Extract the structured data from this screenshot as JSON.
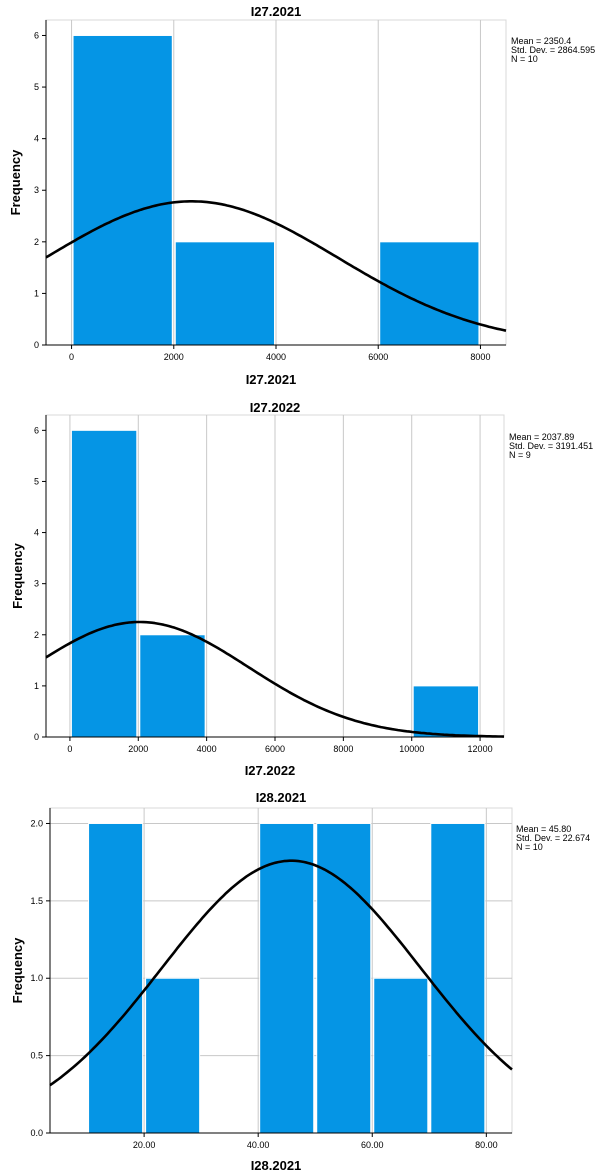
{
  "chart_data": [
    {
      "type": "bar",
      "title": "I27.2021",
      "xlabel": "I27.2021",
      "ylabel": "Frequency",
      "bins": [
        {
          "x0": 0,
          "x1": 2000,
          "count": 6
        },
        {
          "x0": 2000,
          "x1": 4000,
          "count": 2
        },
        {
          "x0": 4000,
          "x1": 6000,
          "count": 0
        },
        {
          "x0": 6000,
          "x1": 8000,
          "count": 2
        }
      ],
      "xlim": [
        -500,
        8500
      ],
      "ylim": [
        0,
        6.3
      ],
      "xticks": [
        0,
        2000,
        4000,
        6000,
        8000
      ],
      "xtick_labels": [
        "0",
        "2000",
        "4000",
        "6000",
        "8000"
      ],
      "yticks": [
        0,
        1,
        2,
        3,
        4,
        5,
        6
      ],
      "ytick_labels": [
        "0",
        "1",
        "2",
        "3",
        "4",
        "5",
        "6"
      ],
      "normal_curve": {
        "mean": 2350.4,
        "sd": 2864.595,
        "n": 10,
        "bin_width": 2000
      },
      "stats": [
        "Mean = 2350.4",
        "Std. Dev. = 2864.595",
        "N = 10"
      ],
      "grid": "vertical"
    },
    {
      "type": "bar",
      "title": "I27.2022",
      "xlabel": "I27.2022",
      "ylabel": "Frequency",
      "bins": [
        {
          "x0": 0,
          "x1": 2000,
          "count": 6
        },
        {
          "x0": 2000,
          "x1": 4000,
          "count": 2
        },
        {
          "x0": 4000,
          "x1": 6000,
          "count": 0
        },
        {
          "x0": 6000,
          "x1": 8000,
          "count": 0
        },
        {
          "x0": 8000,
          "x1": 10000,
          "count": 0
        },
        {
          "x0": 10000,
          "x1": 12000,
          "count": 1
        }
      ],
      "xlim": [
        -700,
        12700
      ],
      "ylim": [
        0,
        6.3
      ],
      "xticks": [
        0,
        2000,
        4000,
        6000,
        8000,
        10000,
        12000
      ],
      "xtick_labels": [
        "0",
        "2000",
        "4000",
        "6000",
        "8000",
        "10000",
        "12000"
      ],
      "yticks": [
        0,
        1,
        2,
        3,
        4,
        5,
        6
      ],
      "ytick_labels": [
        "0",
        "1",
        "2",
        "3",
        "4",
        "5",
        "6"
      ],
      "normal_curve": {
        "mean": 2037.89,
        "sd": 3191.451,
        "n": 9,
        "bin_width": 2000
      },
      "stats": [
        "Mean = 2037.89",
        "Std. Dev. = 3191.451",
        "N = 9"
      ],
      "grid": "vertical"
    },
    {
      "type": "bar",
      "title": "I28.2021",
      "xlabel": "I28.2021",
      "ylabel": "Frequency",
      "bins": [
        {
          "x0": 10,
          "x1": 20,
          "count": 2
        },
        {
          "x0": 20,
          "x1": 30,
          "count": 1
        },
        {
          "x0": 30,
          "x1": 40,
          "count": 0
        },
        {
          "x0": 40,
          "x1": 50,
          "count": 2
        },
        {
          "x0": 50,
          "x1": 60,
          "count": 2
        },
        {
          "x0": 60,
          "x1": 70,
          "count": 1
        },
        {
          "x0": 70,
          "x1": 80,
          "count": 2
        }
      ],
      "xlim": [
        3.5,
        84.5
      ],
      "ylim": [
        0,
        2.1
      ],
      "xticks": [
        20,
        40,
        60,
        80
      ],
      "xtick_labels": [
        "20.00",
        "40.00",
        "60.00",
        "80.00"
      ],
      "yticks": [
        0,
        0.5,
        1.0,
        1.5,
        2.0
      ],
      "ytick_labels": [
        "0.0",
        "0.5",
        "1.0",
        "1.5",
        "2.0"
      ],
      "normal_curve": {
        "mean": 45.8,
        "sd": 22.674,
        "n": 10,
        "bin_width": 10
      },
      "stats": [
        "Mean = 45.80",
        "Std. Dev. = 22.674",
        "N = 10"
      ],
      "grid": "vertical-and-horizontal"
    }
  ],
  "colors": {
    "bar": "#0595e5",
    "bar_edge": "#ffffff",
    "curve": "#000000",
    "grid": "#c8c8c8",
    "axis": "#000000"
  }
}
